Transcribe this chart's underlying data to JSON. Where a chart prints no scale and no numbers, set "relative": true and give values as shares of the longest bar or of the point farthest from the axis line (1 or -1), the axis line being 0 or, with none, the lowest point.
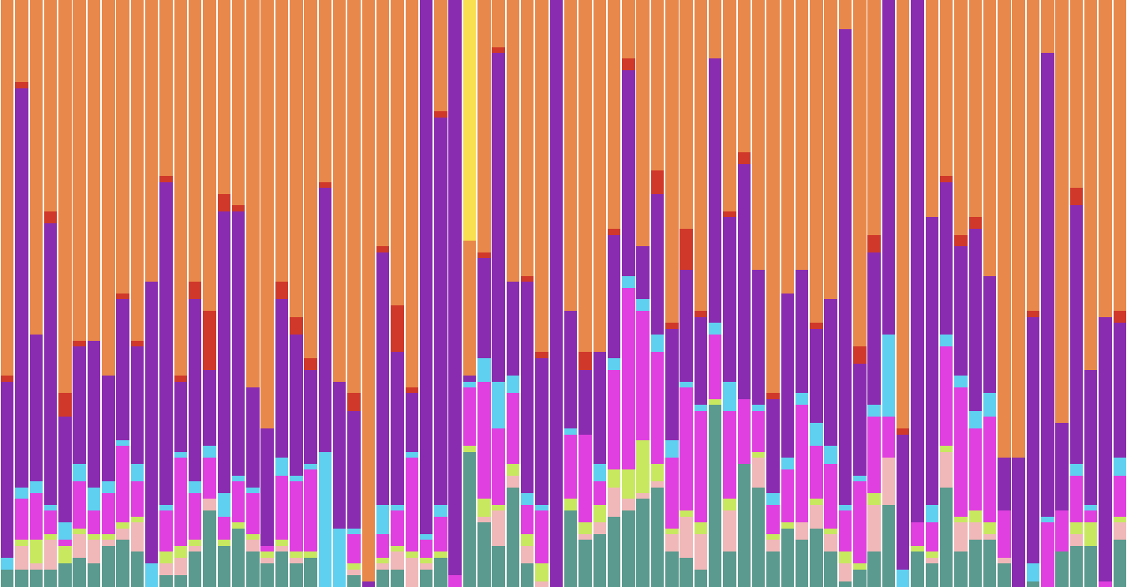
{
  "chart_data": {
    "type": "bar",
    "stacked": true,
    "relative": true,
    "categories": [
      null,
      null,
      null,
      null,
      null,
      null,
      null,
      null,
      null,
      null,
      null,
      null,
      null,
      null,
      null,
      null,
      null,
      null,
      null,
      null,
      null,
      null,
      null,
      null,
      null,
      null,
      null,
      null,
      null,
      null,
      null,
      null,
      null,
      null,
      null,
      null,
      null,
      null,
      null,
      null,
      null,
      null,
      null,
      null,
      null,
      null,
      null,
      null,
      null,
      null,
      null,
      null,
      null,
      null,
      null,
      null,
      null,
      null,
      null,
      null,
      null,
      null,
      null,
      null,
      null,
      null,
      null,
      null,
      null,
      null,
      null,
      null,
      null,
      null,
      null,
      null,
      null,
      null
    ],
    "series": [
      {
        "color": "#5b9a8e",
        "values": [
          0.03,
          0.03,
          0.03,
          0.03,
          0.04,
          0.05,
          0.04,
          0.07,
          0.08,
          0.06,
          0,
          0.02,
          0.02,
          0.06,
          0.13,
          0.07,
          0.1,
          0.06,
          0.04,
          0.06,
          0.04,
          0.05,
          0,
          0,
          0.02,
          0,
          0.03,
          0.03,
          0,
          0.03,
          0.05,
          0,
          0.23,
          0.11,
          0.07,
          0.17,
          0.04,
          0,
          0,
          0.13,
          0.08,
          0.09,
          0.12,
          0.13,
          0.15,
          0.17,
          0.06,
          0.05,
          0.03,
          0.31,
          0.06,
          0.21,
          0.17,
          0.06,
          0.1,
          0.08,
          0.1,
          0.06,
          0.01,
          0.03,
          0.06,
          0.14,
          0,
          0.06,
          0.04,
          0.17,
          0.06,
          0.08,
          0.08,
          0.04,
          0,
          0.01,
          0,
          0.06,
          0.07,
          0.07,
          0,
          0.08
        ]
      },
      {
        "color": "#f0b8b8",
        "values": [
          0,
          0.04,
          0.01,
          0.05,
          0,
          0.04,
          0.04,
          0.01,
          0.02,
          0.05,
          0,
          0.02,
          0.03,
          0.01,
          0.02,
          0,
          0,
          0.02,
          0.01,
          0.01,
          0.01,
          0,
          0,
          0,
          0.01,
          0,
          0.01,
          0.03,
          0.05,
          0.01,
          0,
          0,
          0,
          0.01,
          0.06,
          0.02,
          0.03,
          0.01,
          0,
          0,
          0.01,
          0.02,
          0.05,
          0.02,
          0.01,
          0.01,
          0.03,
          0.07,
          0.06,
          0,
          0.07,
          0,
          0.05,
          0.02,
          0,
          0.03,
          0.04,
          0.03,
          0.03,
          0,
          0.08,
          0.08,
          0,
          0,
          0.01,
          0.06,
          0.05,
          0.03,
          0.01,
          0.01,
          0,
          0,
          0,
          0,
          0.02,
          0,
          0,
          0.03
        ]
      },
      {
        "color": "#c8e860",
        "values": [
          0,
          0.01,
          0.04,
          0.01,
          0.03,
          0.01,
          0.01,
          0.01,
          0.01,
          0.01,
          0,
          0.02,
          0.02,
          0.01,
          0,
          0.01,
          0.01,
          0.01,
          0.01,
          0.01,
          0.01,
          0.01,
          0,
          0,
          0.01,
          0,
          0.01,
          0.01,
          0.01,
          0.01,
          0.01,
          0,
          0.01,
          0.03,
          0.01,
          0.02,
          0.02,
          0.03,
          0,
          0.02,
          0.02,
          0.03,
          0.03,
          0.05,
          0.09,
          0.03,
          0.01,
          0.01,
          0.02,
          0.01,
          0.02,
          0,
          0.01,
          0.01,
          0.01,
          0,
          0.01,
          0.01,
          0.02,
          0.01,
          0.02,
          0,
          0,
          0.01,
          0.01,
          0.01,
          0.01,
          0.02,
          0.02,
          0,
          0,
          0,
          0,
          0,
          0.02,
          0.04,
          0,
          0.01
        ]
      },
      {
        "color": "#e040e0",
        "values": [
          0,
          0.07,
          0.08,
          0.04,
          0.01,
          0.08,
          0.04,
          0.07,
          0.13,
          0.06,
          0,
          0.07,
          0.15,
          0.08,
          0.07,
          0.04,
          0.07,
          0.07,
          0.01,
          0.11,
          0.12,
          0.14,
          0,
          0,
          0.05,
          0,
          0.04,
          0.06,
          0.16,
          0.03,
          0.06,
          0.02,
          0.1,
          0.2,
          0.13,
          0.12,
          0.05,
          0.09,
          0,
          0.11,
          0.15,
          0.04,
          0.17,
          0.31,
          0.22,
          0.19,
          0.12,
          0.21,
          0.19,
          0.11,
          0.15,
          0.11,
          0.07,
          0.05,
          0.09,
          0.2,
          0.09,
          0.11,
          0.07,
          0.14,
          0.13,
          0.07,
          0,
          0.04,
          0.05,
          0.17,
          0.22,
          0.14,
          0.18,
          0.08,
          0,
          0,
          0.11,
          0.07,
          0.08,
          0.02,
          0.01,
          0.07
        ]
      },
      {
        "color": "#60d0f0",
        "values": [
          0.02,
          0.02,
          0.02,
          0.01,
          0.03,
          0.03,
          0.04,
          0.02,
          0.01,
          0.03,
          0.04,
          0.01,
          0.01,
          0.02,
          0.02,
          0.04,
          0.01,
          0.01,
          0,
          0.03,
          0.01,
          0.01,
          0.23,
          0.1,
          0.01,
          0,
          0.05,
          0.01,
          0.01,
          0.01,
          0.02,
          0,
          0.01,
          0.04,
          0.08,
          0.03,
          0.02,
          0.01,
          0,
          0.01,
          0,
          0.03,
          0.02,
          0.02,
          0.02,
          0.03,
          0.03,
          0.01,
          0.01,
          0.02,
          0.05,
          0,
          0.01,
          0.02,
          0.02,
          0.02,
          0.04,
          0.03,
          0.01,
          0.01,
          0.02,
          0.14,
          0.03,
          0,
          0.03,
          0.02,
          0.02,
          0.03,
          0.04,
          0,
          0,
          0.03,
          0.01,
          0,
          0.02,
          0.01,
          0,
          0.03
        ]
      },
      {
        "color": "#8a2cb0",
        "values": [
          0.3,
          0.68,
          0.25,
          0.48,
          0.18,
          0.2,
          0.25,
          0.18,
          0.24,
          0.2,
          0.48,
          0.55,
          0.12,
          0.31,
          0.13,
          0.48,
          0.45,
          0.17,
          0.2,
          0.27,
          0.24,
          0.16,
          0.45,
          0.25,
          0.2,
          0.01,
          0.43,
          0.26,
          0.1,
          0.91,
          0.66,
          0.98,
          0.01,
          0.17,
          0.56,
          0.16,
          0.36,
          0.25,
          1,
          0.2,
          0.11,
          0.19,
          0.21,
          0.35,
          0.09,
          0.24,
          0.19,
          0.19,
          0.15,
          0.45,
          0.28,
          0.4,
          0.23,
          0.16,
          0.28,
          0.21,
          0.16,
          0.25,
          0.81,
          0.19,
          0.26,
          0.57,
          0.23,
          0.89,
          0.49,
          0.26,
          0.22,
          0.31,
          0.2,
          0.09,
          0.22,
          0.42,
          0.79,
          0.15,
          0.44,
          0.23,
          0.45,
          0.23
        ]
      },
      {
        "color": "#d0382a",
        "values": [
          0.01,
          0.01,
          0,
          0.02,
          0.04,
          0.01,
          0,
          0,
          0.01,
          0.01,
          0,
          0.01,
          0.01,
          0.03,
          0.1,
          0.03,
          0.01,
          0,
          0,
          0.03,
          0.03,
          0.02,
          0.01,
          0,
          0.03,
          0,
          0.01,
          0.08,
          0.01,
          0,
          0.01,
          0,
          0,
          0.01,
          0.01,
          0,
          0.01,
          0.01,
          0,
          0,
          0.03,
          0,
          0.01,
          0.02,
          0,
          0.04,
          0.01,
          0.07,
          0.01,
          0,
          0.01,
          0.02,
          0,
          0.01,
          0,
          0,
          0.01,
          0,
          0,
          0.03,
          0.03,
          0,
          0.01,
          0,
          0,
          0.01,
          0.02,
          0.02,
          0,
          0,
          0,
          0.01,
          0,
          0,
          0.03,
          0,
          0,
          0.02
        ]
      },
      {
        "color": "#e8884a",
        "values": [
          0.64,
          0.14,
          0.57,
          0.36,
          0.67,
          0.58,
          0.58,
          0.64,
          0.5,
          0.58,
          0.48,
          0.3,
          0.64,
          0.48,
          0.53,
          0.33,
          0.35,
          0.66,
          0.73,
          0.48,
          0.54,
          0.61,
          0.31,
          0.65,
          0.67,
          0.99,
          0.42,
          0.52,
          0.66,
          0,
          0.19,
          0,
          0.23,
          0.43,
          0.08,
          0.48,
          0.47,
          0.6,
          0,
          0.53,
          0.6,
          0.6,
          0.39,
          0.1,
          0.42,
          0.29,
          0.55,
          0.39,
          0.53,
          0.1,
          0.36,
          0.26,
          0.46,
          0.67,
          0.5,
          0.46,
          0.55,
          0.51,
          0.05,
          0.59,
          0.4,
          0,
          0.73,
          0,
          0.37,
          0.3,
          0.4,
          0.37,
          0.47,
          0.78,
          0.78,
          0.53,
          0.09,
          0.72,
          0.32,
          0.63,
          0.54,
          0.53
        ]
      },
      {
        "color": "#f8e050",
        "values": [
          0,
          0,
          0,
          0,
          0,
          0,
          0,
          0,
          0,
          0,
          0,
          0,
          0,
          0,
          0,
          0,
          0,
          0,
          0,
          0,
          0,
          0,
          0,
          0,
          0,
          0,
          0,
          0,
          0,
          0,
          0,
          0,
          0.41,
          0,
          0,
          0,
          0,
          0,
          0,
          0,
          0,
          0,
          0,
          0,
          0,
          0,
          0,
          0,
          0,
          0,
          0,
          0,
          0,
          0,
          0,
          0,
          0,
          0,
          0,
          0,
          0,
          0,
          0,
          0,
          0,
          0,
          0,
          0,
          0,
          0,
          0,
          0,
          0,
          0,
          0,
          0,
          0,
          0
        ]
      }
    ]
  }
}
